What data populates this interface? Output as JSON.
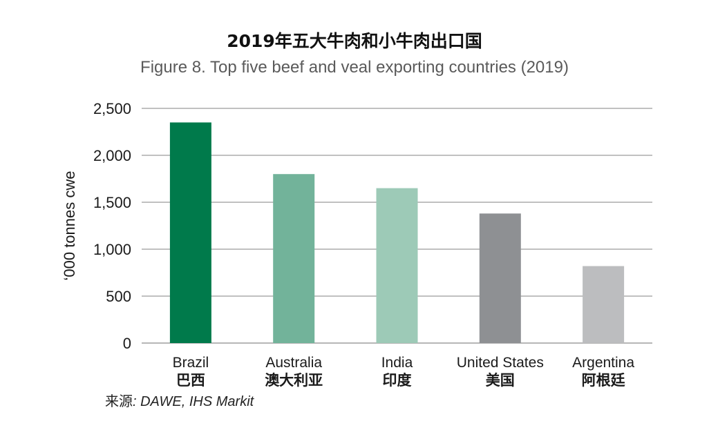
{
  "title": "2019年五大牛肉和小牛肉出口国",
  "subtitle": "Figure 8. Top five beef and veal exporting countries (2019)",
  "source": {
    "prefix": "来源",
    "text": ": DAWE, IHS Markit"
  },
  "chart_data": {
    "type": "bar",
    "categories": [
      "Brazil",
      "Australia",
      "India",
      "United States",
      "Argentina"
    ],
    "categories_zh": [
      "巴西",
      "澳大利亚",
      "印度",
      "美国",
      "阿根廷"
    ],
    "values": [
      2350,
      1800,
      1650,
      1380,
      820
    ],
    "colors": [
      "#007a4b",
      "#72b39a",
      "#9dcab7",
      "#8e9093",
      "#bcbdbf"
    ],
    "ylabel": "‘000 tonnes cwe",
    "ylim": [
      0,
      2500
    ],
    "yticks": [
      0,
      500,
      1000,
      1500,
      2000,
      2500
    ],
    "ytick_labels": [
      "0",
      "500",
      "1,000",
      "1,500",
      "2,000",
      "2,500"
    ],
    "grid": true
  }
}
